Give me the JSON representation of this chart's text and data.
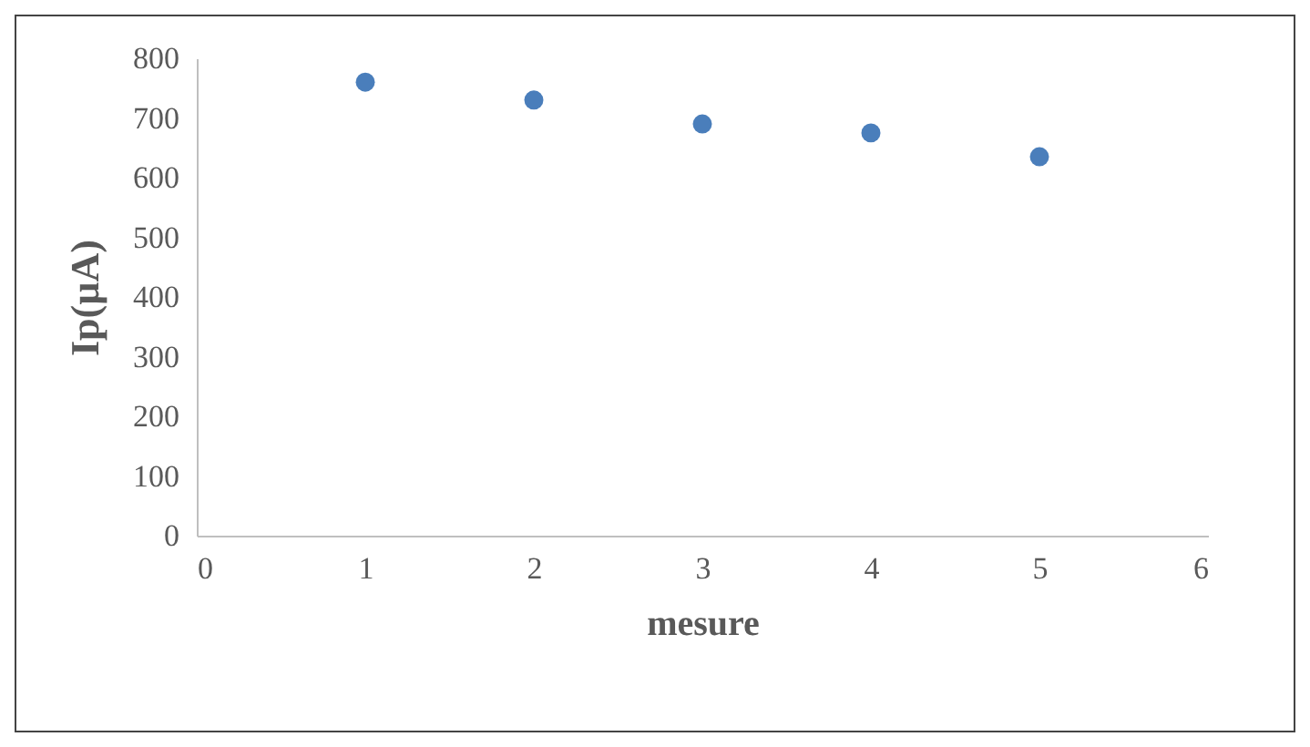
{
  "chart_data": {
    "type": "scatter",
    "xlabel": "mesure",
    "ylabel": "Ip(µA)",
    "x": [
      1,
      2,
      3,
      4,
      5
    ],
    "series": [
      {
        "color": "#4a7ebb",
        "values": [
          760,
          730,
          690,
          675,
          635
        ]
      }
    ],
    "xlim": [
      0,
      6
    ],
    "xticks": [
      0,
      1,
      2,
      3,
      4,
      5,
      6
    ],
    "ylim": [
      0,
      800
    ],
    "yticks": [
      0,
      100,
      200,
      300,
      400,
      500,
      600,
      700,
      800
    ],
    "grid": false,
    "legend": false,
    "marker": "circle"
  }
}
